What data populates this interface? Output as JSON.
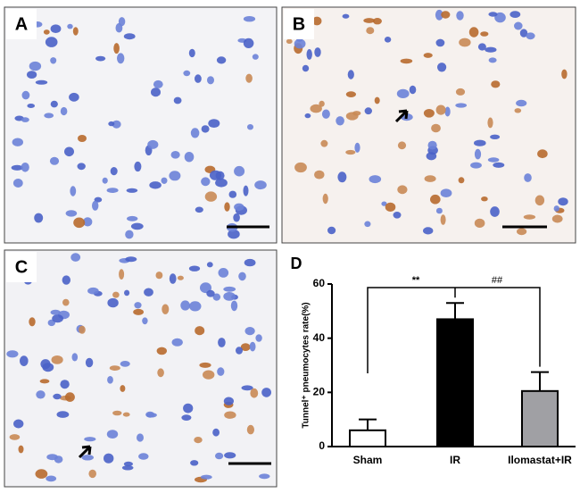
{
  "panels": [
    "A",
    "B",
    "C",
    "D"
  ],
  "chart_data": {
    "type": "bar",
    "y_label": "Tunnel⁺ pneumocytes rate(%)",
    "categories": [
      "Sham",
      "IR",
      "Ilomastat+IR"
    ],
    "values": [
      6,
      47,
      20.5
    ],
    "errors": [
      4,
      6,
      7
    ],
    "colors": [
      "#ffffff",
      "#000000",
      "#a0a0a4"
    ],
    "ylim": [
      0,
      60
    ],
    "yticks": [
      0,
      20,
      40,
      60
    ],
    "annotations": [
      "**",
      "##"
    ]
  }
}
